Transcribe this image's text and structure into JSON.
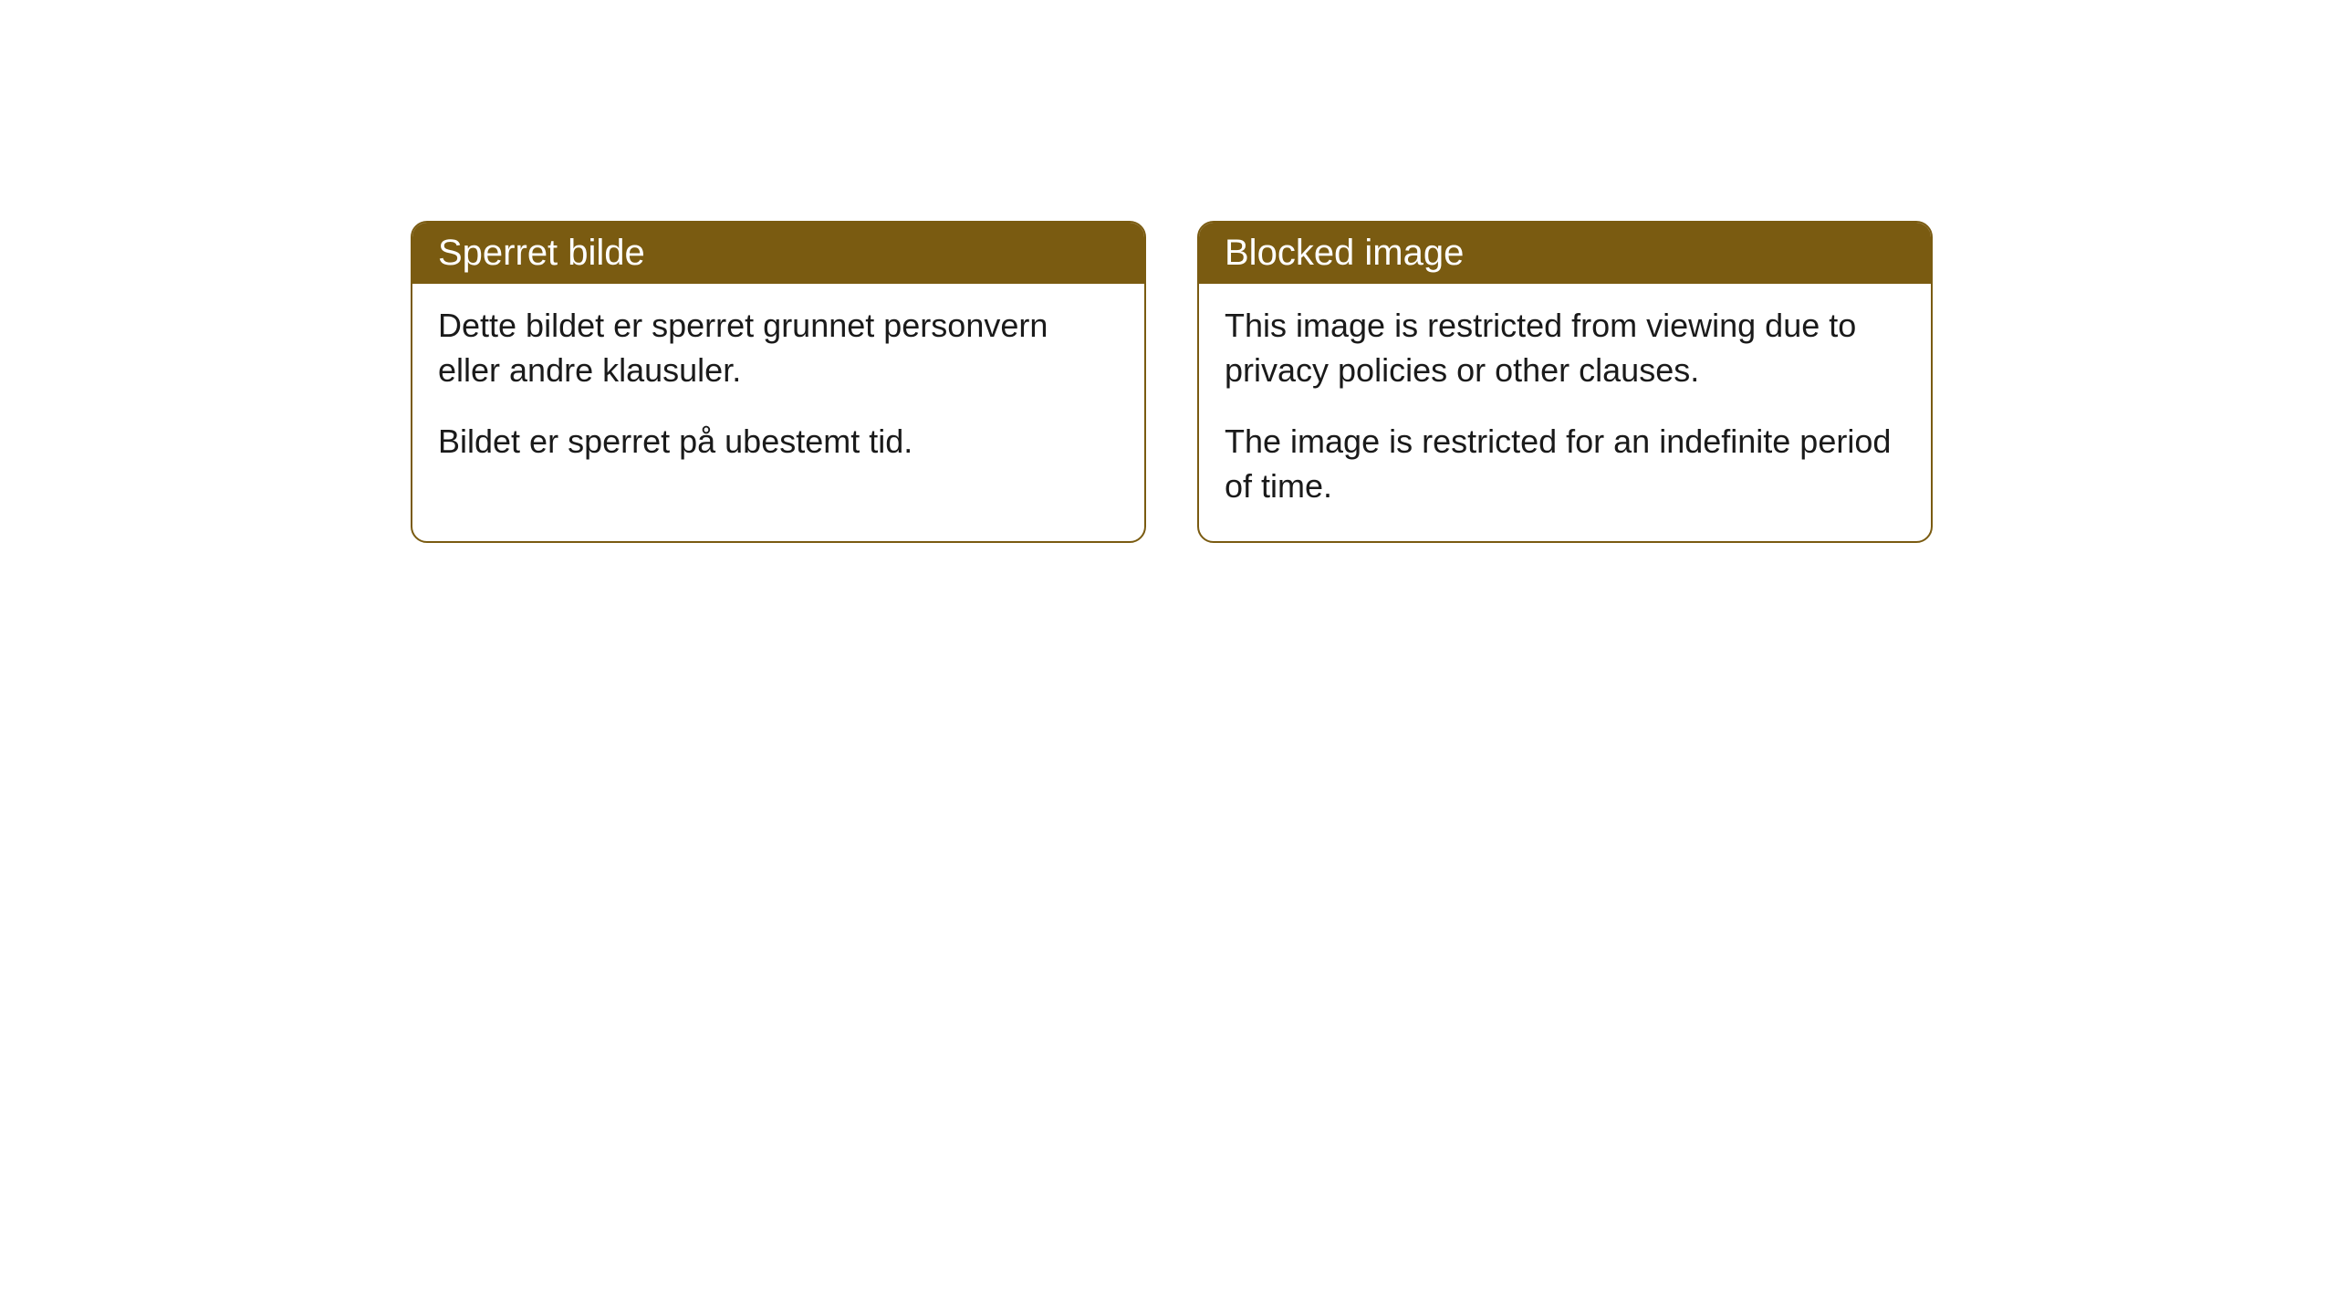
{
  "cards": [
    {
      "title": "Sperret bilde",
      "paragraph1": "Dette bildet er sperret grunnet personvern eller andre klausuler.",
      "paragraph2": "Bildet er sperret på ubestemt tid."
    },
    {
      "title": "Blocked image",
      "paragraph1": "This image is restricted from viewing due to privacy policies or other clauses.",
      "paragraph2": "The image is restricted for an indefinite period of time."
    }
  ],
  "style": {
    "header_background": "#7a5b11",
    "header_text_color": "#ffffff",
    "border_color": "#7a5b11",
    "body_background": "#ffffff",
    "body_text_color": "#1a1a1a",
    "border_radius": 18,
    "title_fontsize": 40,
    "body_fontsize": 36
  }
}
